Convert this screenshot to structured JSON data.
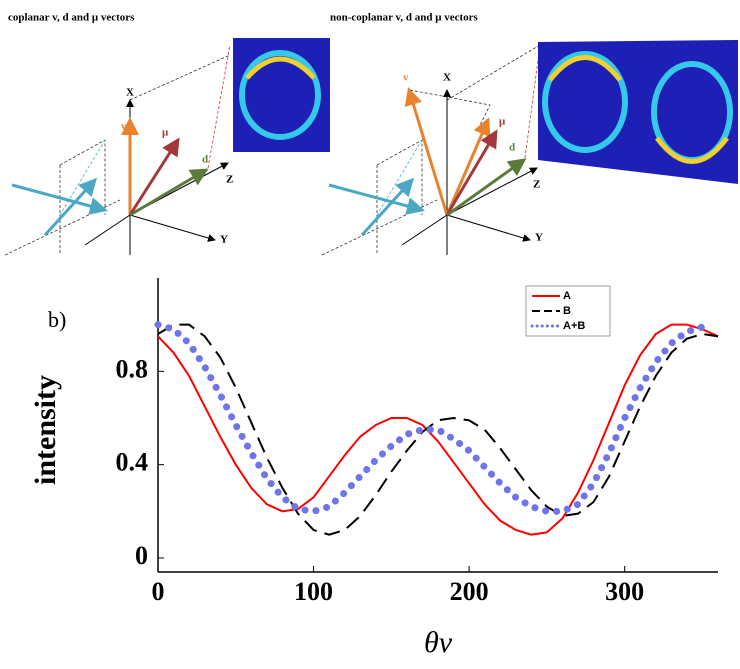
{
  "diagrams": [
    {
      "title": "coplanar v, d and μ vectors",
      "labels": [
        "X",
        "v",
        "μ",
        "d",
        "Z",
        "Y"
      ]
    },
    {
      "title": "non-coplanar v, d and μ vectors",
      "labels": [
        "X",
        "v",
        "μ",
        "d",
        "Z",
        "Y"
      ]
    }
  ],
  "chart_data": {
    "type": "line",
    "panel_label": "b)",
    "xlabel": "θv",
    "ylabel": "intensity",
    "x": [
      0,
      10,
      20,
      30,
      40,
      50,
      60,
      70,
      80,
      90,
      100,
      110,
      120,
      130,
      140,
      150,
      160,
      170,
      180,
      190,
      200,
      210,
      220,
      230,
      240,
      250,
      260,
      270,
      280,
      290,
      300,
      310,
      320,
      330,
      340,
      350,
      360
    ],
    "series": [
      {
        "name": "A",
        "color": "#ff0000",
        "style": "solid",
        "values": [
          0.95,
          0.88,
          0.78,
          0.65,
          0.52,
          0.4,
          0.3,
          0.23,
          0.2,
          0.21,
          0.26,
          0.35,
          0.44,
          0.52,
          0.57,
          0.6,
          0.6,
          0.57,
          0.5,
          0.41,
          0.32,
          0.23,
          0.16,
          0.12,
          0.1,
          0.11,
          0.17,
          0.28,
          0.42,
          0.58,
          0.74,
          0.87,
          0.96,
          1.0,
          1.0,
          0.98,
          0.95
        ]
      },
      {
        "name": "B",
        "color": "#000000",
        "style": "dashed",
        "values": [
          0.96,
          1.0,
          1.0,
          0.95,
          0.86,
          0.73,
          0.58,
          0.43,
          0.3,
          0.19,
          0.12,
          0.1,
          0.12,
          0.18,
          0.27,
          0.37,
          0.46,
          0.54,
          0.59,
          0.6,
          0.59,
          0.55,
          0.47,
          0.38,
          0.29,
          0.22,
          0.18,
          0.19,
          0.24,
          0.35,
          0.5,
          0.65,
          0.78,
          0.88,
          0.94,
          0.96,
          0.95
        ]
      },
      {
        "name": "A+B",
        "color": "#6f74e8",
        "style": "dotted",
        "values": [
          1.0,
          0.98,
          0.92,
          0.82,
          0.7,
          0.57,
          0.45,
          0.34,
          0.26,
          0.21,
          0.2,
          0.22,
          0.28,
          0.35,
          0.42,
          0.48,
          0.53,
          0.55,
          0.55,
          0.51,
          0.46,
          0.39,
          0.32,
          0.26,
          0.22,
          0.2,
          0.2,
          0.23,
          0.32,
          0.45,
          0.6,
          0.73,
          0.84,
          0.92,
          0.97,
          0.99,
          null
        ]
      }
    ],
    "xlim": [
      0,
      360
    ],
    "ylim": [
      -0.06,
      1.2
    ],
    "xticks": [
      0,
      100,
      200,
      300
    ],
    "yticks": [
      0,
      0.4,
      0.8
    ],
    "legend": "top-right"
  }
}
